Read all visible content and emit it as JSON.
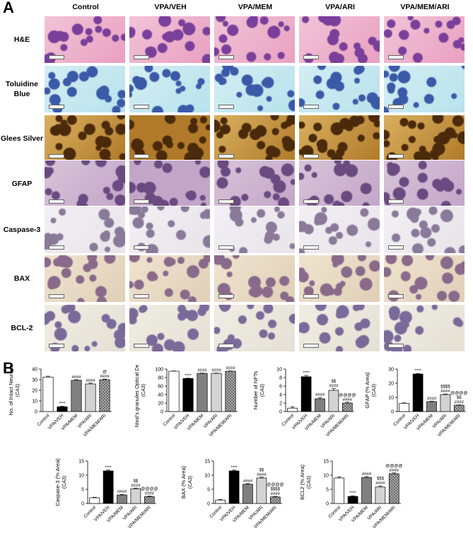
{
  "panel_a_label": "A",
  "panel_b_label": "B",
  "columns": [
    "Control",
    "VPA/VEH",
    "VPA/MEM",
    "VPA/ARI",
    "VPA/MEM/ARI"
  ],
  "rows": [
    {
      "label": "H&E",
      "stain": "he"
    },
    {
      "label": "Toluidine Blue",
      "stain": "tb"
    },
    {
      "label": "Glees Silver",
      "stain": "gs"
    },
    {
      "label": "GFAP",
      "stain": "gfap"
    },
    {
      "label": "Caspase-3",
      "stain": "casp"
    },
    {
      "label": "BAX",
      "stain": "bax"
    },
    {
      "label": "BCL-2",
      "stain": "bcl"
    }
  ],
  "colors": {
    "he": [
      "#e8a0c0",
      "#f2c4d8",
      "#7a3f9a"
    ],
    "tb": [
      "#b8e2ec",
      "#d4eef3",
      "#3a5aa8"
    ],
    "gs": [
      "#b07a2a",
      "#d9b060",
      "#4a2a0a"
    ],
    "gfap": [
      "#c2a6c8",
      "#d8c4d8",
      "#6a4a80"
    ],
    "casp": [
      "#e8e4ea",
      "#f2f0f4",
      "#8a7a9a"
    ],
    "bax": [
      "#e0cfb8",
      "#efe4cf",
      "#8a6a8a"
    ],
    "bcl": [
      "#e4e0d4",
      "#f0ede4",
      "#7a6a9a"
    ],
    "bar_fills": [
      "#ffffff",
      "#000000",
      "#808080",
      "#d3d3d3",
      "#a8a8a8"
    ],
    "micro_arrow": "#2a4fd0"
  },
  "chart_data": [
    {
      "type": "bar",
      "ylabel": "No. of Intact Neurons",
      "ylabel2": "(CA3)",
      "categories": [
        "Control",
        "VPA/VEH",
        "VPA/MEM",
        "VPA/ARI",
        "VPA/MEM/ARI"
      ],
      "values": [
        32.5,
        4.5,
        29.5,
        26,
        30
      ],
      "errors": [
        0.8,
        0.5,
        0.5,
        0.8,
        0.6
      ],
      "ylim": [
        0,
        40
      ],
      "yticks": [
        "0",
        "10",
        "20",
        "30",
        "40"
      ],
      "annotations": [
        "",
        "****",
        "####",
        "####",
        "@\n####"
      ]
    },
    {
      "type": "bar",
      "ylabel": "Nissl's granules Optical Density",
      "ylabel2": "(CA3)",
      "categories": [
        "Control",
        "VPA/VEH",
        "VPA/MEM",
        "VPA/ARI",
        "VPA/MEM/ARI"
      ],
      "values": [
        95,
        78,
        90,
        90,
        95
      ],
      "errors": [
        0.6,
        0.6,
        0.6,
        0.6,
        0.6
      ],
      "ylim": [
        0,
        100
      ],
      "yticks": [
        "0",
        "20",
        "40",
        "60",
        "80",
        "100"
      ],
      "annotations": [
        "",
        "****",
        "####",
        "####",
        "@@@@\n$$$$\n####"
      ]
    },
    {
      "type": "bar",
      "ylabel": "Number of NFTs",
      "ylabel2": "(CA3)",
      "categories": [
        "Control",
        "VPA/VEH",
        "VPA/MEM",
        "VPA/ARI",
        "VPA/MEM/ARI"
      ],
      "values": [
        0.8,
        8.2,
        3,
        5,
        2
      ],
      "errors": [
        0.3,
        0.3,
        0.3,
        0.4,
        0.2
      ],
      "ylim": [
        0,
        10
      ],
      "yticks": [
        "0",
        "2",
        "4",
        "6",
        "8",
        "10"
      ],
      "annotations": [
        "",
        "****",
        "####",
        "$$\n####",
        "@@@@\n####"
      ]
    },
    {
      "type": "bar",
      "ylabel": "GFAP (% Area)",
      "ylabel2": "(CA3)",
      "categories": [
        "Control",
        "VPA/VEH",
        "VPA/MEM",
        "VPA/ARI",
        "VPA/MEM/ARI"
      ],
      "values": [
        5.8,
        26.5,
        7,
        12,
        4.5
      ],
      "errors": [
        0.3,
        0.4,
        0.3,
        0.4,
        0.2
      ],
      "ylim": [
        0,
        30
      ],
      "yticks": [
        "0",
        "10",
        "20",
        "30"
      ],
      "annotations": [
        "",
        "****",
        "####",
        "$$$$\n####",
        "@@@@\n$$\n####"
      ]
    },
    {
      "type": "bar",
      "ylabel": "Caspase-3 (% Area)",
      "ylabel2": "(CA3)",
      "categories": [
        "Control",
        "VPA/VEH",
        "VPA/MEM",
        "VPA/ARI",
        "VPA/MEM/ARI"
      ],
      "values": [
        2,
        11.5,
        3,
        5.2,
        2.4
      ],
      "errors": [
        0.2,
        0.3,
        0.2,
        0.2,
        0.2
      ],
      "ylim": [
        0,
        15
      ],
      "yticks": [
        "0",
        "5",
        "10",
        "15"
      ],
      "annotations": [
        "",
        "****",
        "####",
        "$$\n####",
        "@@@@\n####"
      ]
    },
    {
      "type": "bar",
      "ylabel": "BAX (% Area)",
      "ylabel2": "(CA3)",
      "categories": [
        "Control",
        "VPA/VEH",
        "VPA/MEM",
        "VPA/ARI",
        "VPA/MEM/ARI"
      ],
      "values": [
        1.2,
        11.5,
        6.8,
        9,
        2.3
      ],
      "errors": [
        0.2,
        0.3,
        0.2,
        0.3,
        0.2
      ],
      "ylim": [
        0,
        15
      ],
      "yticks": [
        "0",
        "5",
        "10",
        "15"
      ],
      "annotations": [
        "",
        "****",
        "####",
        "$$\n####",
        "@@@@\n$$$$\n####"
      ]
    },
    {
      "type": "bar",
      "ylabel": "BCL2 (% Area)",
      "ylabel2": "(CA3)",
      "categories": [
        "Control",
        "VPA/VEH",
        "VPA/MEM",
        "VPA/ARI",
        "VPA/MEM/ARI"
      ],
      "values": [
        9,
        2.5,
        9.2,
        5.8,
        10.5
      ],
      "errors": [
        0.4,
        0.2,
        0.3,
        0.4,
        0.3
      ],
      "ylim": [
        0,
        15
      ],
      "yticks": [
        "0",
        "5",
        "10",
        "15"
      ],
      "annotations": [
        "",
        "****",
        "####",
        "$$$\n####",
        "@@@@\n####"
      ]
    }
  ]
}
